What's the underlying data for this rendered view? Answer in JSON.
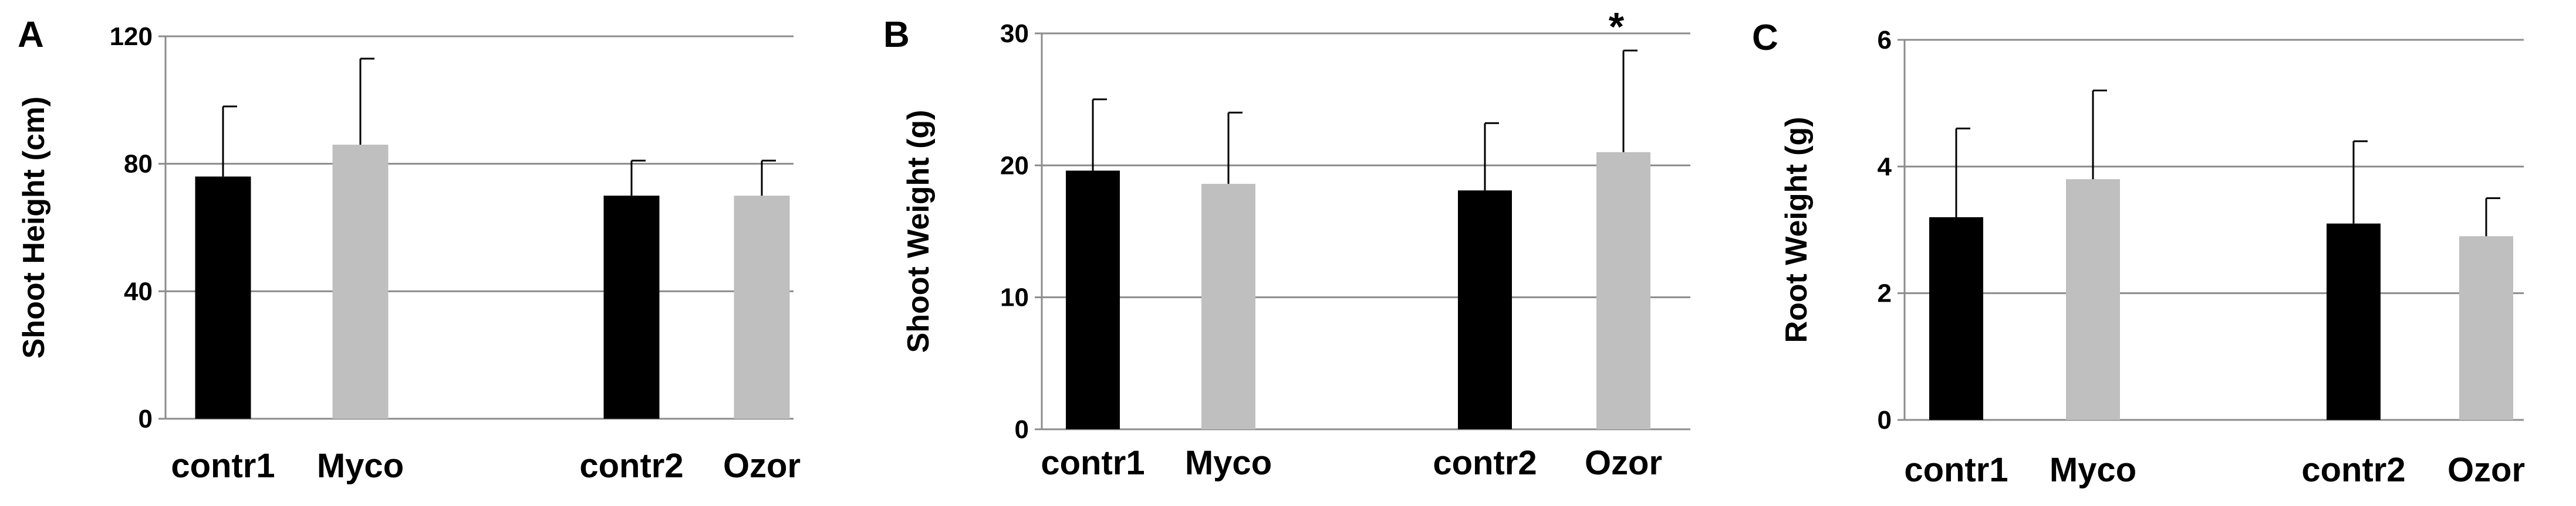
{
  "chart_data": [
    {
      "panel": "A",
      "type": "bar",
      "ylabel": "Shoot Height (cm)",
      "ylim": [
        0,
        120
      ],
      "yticks": [
        "0",
        "40",
        "80",
        "120"
      ],
      "grid": true,
      "categories": [
        "contr1",
        "Myco",
        "contr2",
        "Ozor"
      ],
      "values": [
        76,
        86,
        70,
        70
      ],
      "errors": [
        22,
        27,
        11,
        11
      ],
      "colors": [
        "#000000",
        "#bfbfbf",
        "#000000",
        "#bfbfbf"
      ],
      "annotations": [
        "",
        "",
        "",
        ""
      ]
    },
    {
      "panel": "B",
      "type": "bar",
      "ylabel": "Shoot Weight (g)",
      "ylim": [
        0,
        30
      ],
      "yticks": [
        "0",
        "10",
        "20",
        "30"
      ],
      "grid": true,
      "categories": [
        "contr1",
        "Myco",
        "contr2",
        "Ozor"
      ],
      "values": [
        19.6,
        18.6,
        18.1,
        21.0
      ],
      "errors": [
        5.4,
        5.4,
        5.1,
        7.7
      ],
      "colors": [
        "#000000",
        "#bfbfbf",
        "#000000",
        "#bfbfbf"
      ],
      "annotations": [
        "",
        "",
        "",
        "*"
      ]
    },
    {
      "panel": "C",
      "type": "bar",
      "ylabel": "Root Weight (g)",
      "ylim": [
        0,
        6
      ],
      "yticks": [
        "0",
        "2",
        "4",
        "6"
      ],
      "grid": true,
      "categories": [
        "contr1",
        "Myco",
        "contr2",
        "Ozor"
      ],
      "values": [
        3.2,
        3.8,
        3.1,
        2.9
      ],
      "errors": [
        1.4,
        1.4,
        1.3,
        0.6
      ],
      "colors": [
        "#000000",
        "#bfbfbf",
        "#000000",
        "#bfbfbf"
      ],
      "annotations": [
        "",
        "",
        "",
        ""
      ]
    }
  ]
}
